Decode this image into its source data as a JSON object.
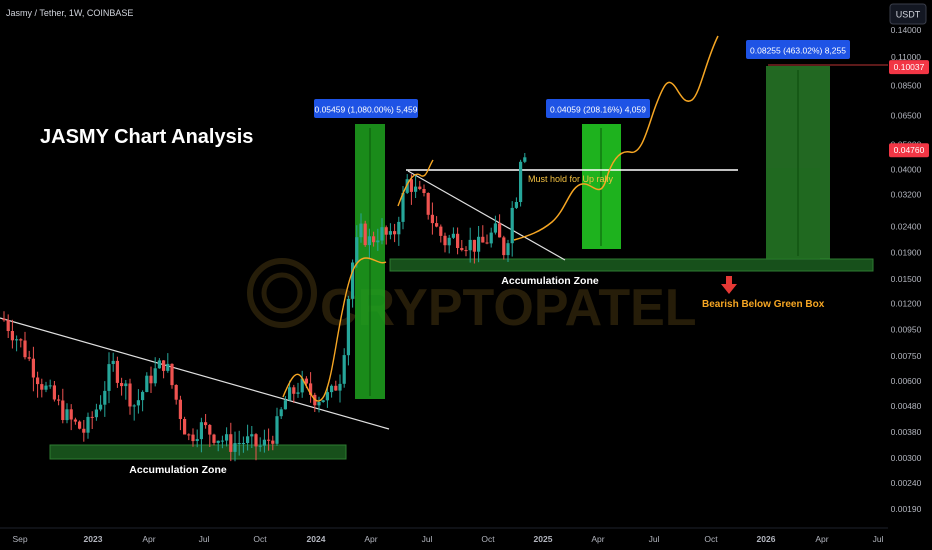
{
  "header": {
    "title": "Jasmy / Tether, 1W, COINBASE"
  },
  "currency_badge": "USDT",
  "watermark": "CRYPTOPATEL",
  "chart_data": {
    "type": "candlestick",
    "title": "JASMY Chart Analysis",
    "xlabel": "",
    "ylabel": "",
    "y_scale": "log",
    "x_ticks": [
      "Sep",
      "2023",
      "Apr",
      "Jul",
      "Oct",
      "2024",
      "Apr",
      "Jul",
      "Oct",
      "2025",
      "Apr",
      "Jul",
      "Oct",
      "2026",
      "Apr",
      "Jul"
    ],
    "y_ticks": [
      "0.14000",
      "0.11000",
      "0.08500",
      "0.06500",
      "0.05000",
      "0.04000",
      "0.03200",
      "0.02400",
      "0.01900",
      "0.01500",
      "0.01200",
      "0.00950",
      "0.00750",
      "0.00600",
      "0.00480",
      "0.00380",
      "0.00300",
      "0.00240",
      "0.00190"
    ],
    "y_tick_values": [
      0.14,
      0.11,
      0.085,
      0.065,
      0.05,
      0.04,
      0.032,
      0.024,
      0.019,
      0.015,
      0.012,
      0.0095,
      0.0075,
      0.006,
      0.0048,
      0.0038,
      0.003,
      0.0024,
      0.0019
    ],
    "price_labels": [
      {
        "text": "0.10037",
        "value": 0.10037,
        "color": "#f23645"
      },
      {
        "text": "0.04760",
        "value": 0.0476,
        "color": "#f23645"
      }
    ],
    "annotations": {
      "measure_1": "0.05459 (1,080.00%) 5,459",
      "measure_2": "0.04059 (208.16%) 4,059",
      "measure_3": "0.08255 (463.02%) 8,255",
      "hold_note": "Must hold for Up rally",
      "zone_low": "Accumulation Zone",
      "zone_high": "Accumulation Zone",
      "bearish_note": "Bearish Below Green Box"
    },
    "colors": {
      "up": "#26a69a",
      "down": "#ef5350",
      "projection": "#f6a623",
      "zone": "#1b5e20",
      "measure_label": "#1e53e5"
    }
  }
}
